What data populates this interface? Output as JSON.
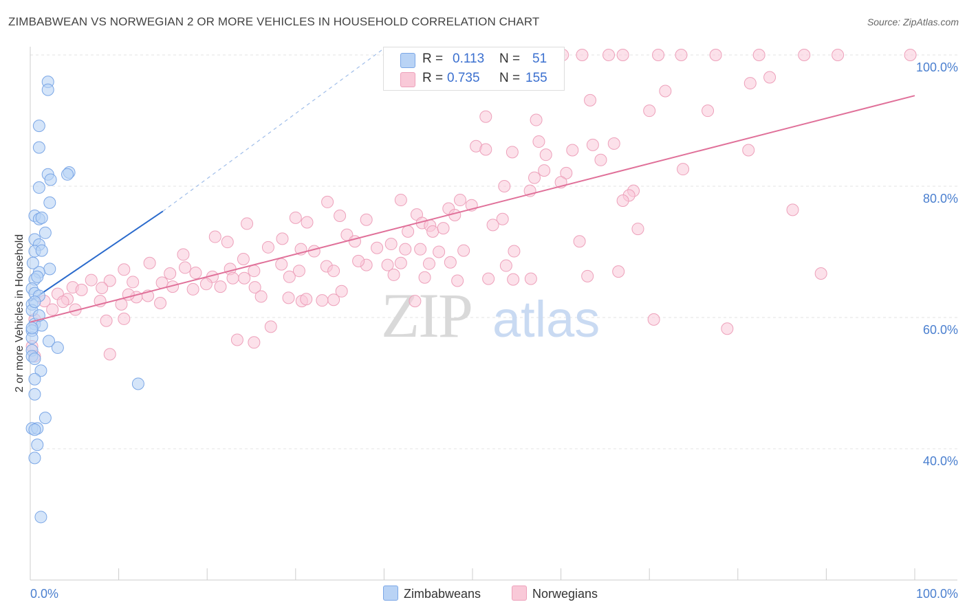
{
  "title": "ZIMBABWEAN VS NORWEGIAN 2 OR MORE VEHICLES IN HOUSEHOLD CORRELATION CHART",
  "source": "Source: ZipAtlas.com",
  "colors": {
    "zim_fill": "#b9d3f5",
    "zim_stroke": "#7aa6e6",
    "zim_line": "#2a6acc",
    "nor_fill": "#f9c9d8",
    "nor_stroke": "#eda0ba",
    "nor_line": "#e07099",
    "tick": "#4a7fcf",
    "grid": "#e3e3e3"
  },
  "legend_top": {
    "zim": {
      "r_label": "R =",
      "r_value": "0.113",
      "n_label": "N =",
      "n_value": "51"
    },
    "nor": {
      "r_label": "R =",
      "r_value": "0.735",
      "n_label": "N =",
      "n_value": "155"
    }
  },
  "chart_data": {
    "type": "scatter",
    "title": "ZIMBABWEAN VS NORWEGIAN 2 OR MORE VEHICLES IN HOUSEHOLD CORRELATION CHART",
    "xlabel": "",
    "ylabel": "2 or more Vehicles in Household",
    "xlim": [
      0,
      100
    ],
    "ylim": [
      22,
      102
    ],
    "x_tick_labels": [
      "0.0%",
      "100.0%"
    ],
    "y_ticks": [
      40,
      60,
      80,
      100
    ],
    "y_tick_labels": [
      "40.0%",
      "60.0%",
      "80.0%",
      "100.0%"
    ],
    "watermark": {
      "zip": "ZIP",
      "atlas": "atlas"
    },
    "legend": [
      "Zimbabweans",
      "Norwegians"
    ],
    "series": [
      {
        "name": "Zimbabweans",
        "r": 0.113,
        "n": 51,
        "trend": {
          "x0": 0,
          "y0": 62.5,
          "x1": 15,
          "y1": 76.2,
          "dash_x1": 40,
          "dash_y1": 101
        },
        "points": [
          [
            2,
            95.9
          ],
          [
            2,
            94.7
          ],
          [
            1,
            89.2
          ],
          [
            1,
            85.9
          ],
          [
            2,
            81.8
          ],
          [
            4.4,
            82.1
          ],
          [
            4.2,
            81.8
          ],
          [
            2.3,
            81.0
          ],
          [
            1,
            79.8
          ],
          [
            2.2,
            77.5
          ],
          [
            0.5,
            75.5
          ],
          [
            1,
            75.0
          ],
          [
            1.3,
            75.2
          ],
          [
            1.7,
            72.9
          ],
          [
            0.5,
            71.9
          ],
          [
            1,
            71.1
          ],
          [
            0.5,
            70.1
          ],
          [
            1.3,
            70.2
          ],
          [
            2.2,
            67.4
          ],
          [
            1,
            66.9
          ],
          [
            0.5,
            65.8
          ],
          [
            0.2,
            64.4
          ],
          [
            0.5,
            63.7
          ],
          [
            1,
            63.3
          ],
          [
            0.2,
            62.0
          ],
          [
            0.2,
            61.1
          ],
          [
            0.5,
            59.0
          ],
          [
            1.3,
            58.8
          ],
          [
            0.2,
            58.0
          ],
          [
            0.2,
            56.9
          ],
          [
            2.1,
            56.4
          ],
          [
            3.1,
            55.4
          ],
          [
            0.2,
            55.0
          ],
          [
            0.2,
            54.1
          ],
          [
            0.5,
            53.7
          ],
          [
            1.2,
            51.9
          ],
          [
            0.5,
            50.6
          ],
          [
            12.2,
            49.9
          ],
          [
            0.5,
            48.3
          ],
          [
            1.7,
            44.7
          ],
          [
            0.2,
            43.1
          ],
          [
            0.8,
            43.1
          ],
          [
            0.5,
            42.9
          ],
          [
            0.8,
            40.6
          ],
          [
            0.5,
            38.6
          ],
          [
            1.2,
            29.6
          ],
          [
            0.2,
            58.4
          ],
          [
            0.5,
            62.4
          ],
          [
            1.0,
            60.3
          ],
          [
            0.3,
            68.3
          ],
          [
            0.8,
            66.2
          ]
        ]
      },
      {
        "name": "Norwegians",
        "r": 0.735,
        "n": 155,
        "trend": {
          "x0": 0,
          "y0": 59.3,
          "x1": 100,
          "y1": 93.8
        },
        "points": [
          [
            60.2,
            100
          ],
          [
            62.4,
            100
          ],
          [
            65.4,
            100
          ],
          [
            67.0,
            100
          ],
          [
            71.0,
            100
          ],
          [
            73.6,
            100
          ],
          [
            77.5,
            100
          ],
          [
            82.4,
            100
          ],
          [
            87.5,
            100
          ],
          [
            91.3,
            100
          ],
          [
            99.5,
            100
          ],
          [
            83.6,
            96.6
          ],
          [
            81.4,
            95.7
          ],
          [
            71.8,
            94.5
          ],
          [
            63.3,
            93.1
          ],
          [
            70.0,
            91.5
          ],
          [
            76.6,
            91.5
          ],
          [
            51.5,
            90.6
          ],
          [
            57.2,
            90.1
          ],
          [
            57.5,
            86.8
          ],
          [
            63.6,
            86.3
          ],
          [
            66.0,
            86.5
          ],
          [
            50.4,
            86.1
          ],
          [
            51.5,
            85.6
          ],
          [
            54.5,
            85.2
          ],
          [
            58.3,
            84.8
          ],
          [
            61.3,
            85.5
          ],
          [
            64.5,
            84.0
          ],
          [
            81.2,
            85.5
          ],
          [
            73.8,
            82.6
          ],
          [
            58.1,
            82.4
          ],
          [
            60.6,
            82.0
          ],
          [
            57.0,
            81.3
          ],
          [
            60.0,
            80.6
          ],
          [
            53.6,
            80.0
          ],
          [
            56.5,
            79.3
          ],
          [
            68.2,
            79.3
          ],
          [
            67.7,
            78.6
          ],
          [
            67.0,
            77.8
          ],
          [
            33.6,
            77.6
          ],
          [
            41.9,
            77.9
          ],
          [
            48.6,
            77.9
          ],
          [
            49.9,
            77.1
          ],
          [
            47.3,
            76.6
          ],
          [
            43.7,
            75.7
          ],
          [
            35.0,
            75.5
          ],
          [
            30.0,
            75.2
          ],
          [
            38.0,
            74.9
          ],
          [
            44.3,
            74.4
          ],
          [
            48.0,
            75.6
          ],
          [
            53.4,
            75.0
          ],
          [
            86.2,
            76.4
          ],
          [
            24.5,
            74.3
          ],
          [
            31.3,
            74.5
          ],
          [
            45.2,
            74.0
          ],
          [
            52.3,
            74.1
          ],
          [
            68.7,
            73.5
          ],
          [
            42.7,
            73.1
          ],
          [
            45.5,
            73.1
          ],
          [
            35.8,
            72.6
          ],
          [
            20.9,
            72.3
          ],
          [
            28.5,
            72.0
          ],
          [
            46.7,
            73.6
          ],
          [
            62.1,
            71.6
          ],
          [
            36.7,
            71.6
          ],
          [
            40.8,
            71.2
          ],
          [
            22.3,
            71.5
          ],
          [
            26.9,
            70.7
          ],
          [
            30.6,
            70.4
          ],
          [
            39.2,
            70.6
          ],
          [
            42.4,
            70.4
          ],
          [
            44.1,
            70.4
          ],
          [
            46.2,
            70.0
          ],
          [
            49.0,
            70.2
          ],
          [
            54.7,
            70.1
          ],
          [
            32.1,
            70.1
          ],
          [
            17.3,
            69.6
          ],
          [
            24.1,
            68.9
          ],
          [
            28.4,
            68.1
          ],
          [
            38.0,
            68.0
          ],
          [
            40.4,
            68.0
          ],
          [
            33.5,
            67.8
          ],
          [
            41.9,
            68.3
          ],
          [
            37.1,
            68.6
          ],
          [
            45.1,
            68.2
          ],
          [
            47.5,
            68.4
          ],
          [
            53.8,
            67.9
          ],
          [
            13.5,
            68.3
          ],
          [
            17.5,
            67.6
          ],
          [
            22.6,
            67.4
          ],
          [
            25.3,
            67.1
          ],
          [
            30.4,
            67.1
          ],
          [
            34.3,
            67.1
          ],
          [
            41.1,
            66.5
          ],
          [
            18.7,
            66.8
          ],
          [
            15.8,
            66.7
          ],
          [
            10.6,
            67.3
          ],
          [
            20.6,
            66.2
          ],
          [
            24.2,
            66.0
          ],
          [
            29.3,
            66.2
          ],
          [
            22.9,
            66.0
          ],
          [
            44.6,
            66.1
          ],
          [
            51.8,
            65.9
          ],
          [
            63.0,
            66.3
          ],
          [
            66.5,
            67.0
          ],
          [
            48.3,
            65.6
          ],
          [
            54.6,
            65.8
          ],
          [
            56.6,
            65.9
          ],
          [
            11.6,
            65.4
          ],
          [
            6.9,
            65.7
          ],
          [
            9.0,
            65.6
          ],
          [
            14.9,
            65.3
          ],
          [
            19.9,
            65.1
          ],
          [
            16.1,
            64.7
          ],
          [
            21.5,
            64.7
          ],
          [
            25.4,
            64.6
          ],
          [
            18.4,
            64.3
          ],
          [
            4.8,
            64.6
          ],
          [
            8.1,
            64.5
          ],
          [
            5.8,
            64.2
          ],
          [
            3.1,
            63.6
          ],
          [
            12.0,
            63.1
          ],
          [
            13.3,
            63.3
          ],
          [
            11.1,
            63.5
          ],
          [
            26.1,
            63.2
          ],
          [
            29.2,
            63.0
          ],
          [
            35.2,
            64.0
          ],
          [
            4.2,
            62.8
          ],
          [
            3.7,
            62.4
          ],
          [
            1.6,
            62.5
          ],
          [
            7.9,
            62.5
          ],
          [
            14.7,
            62.2
          ],
          [
            10.3,
            62.0
          ],
          [
            30.7,
            62.5
          ],
          [
            34.3,
            62.7
          ],
          [
            33.0,
            62.6
          ],
          [
            31.2,
            62.8
          ],
          [
            43.5,
            62.5
          ],
          [
            5.1,
            61.2
          ],
          [
            2.5,
            61.2
          ],
          [
            0.5,
            59.7
          ],
          [
            10.6,
            59.8
          ],
          [
            8.6,
            59.5
          ],
          [
            70.5,
            59.7
          ],
          [
            27.2,
            58.6
          ],
          [
            78.8,
            58.3
          ],
          [
            23.4,
            56.6
          ],
          [
            25.3,
            56.2
          ],
          [
            9.0,
            54.4
          ],
          [
            0.5,
            54.1
          ],
          [
            0.2,
            55.6
          ],
          [
            89.4,
            66.7
          ]
        ]
      }
    ]
  }
}
